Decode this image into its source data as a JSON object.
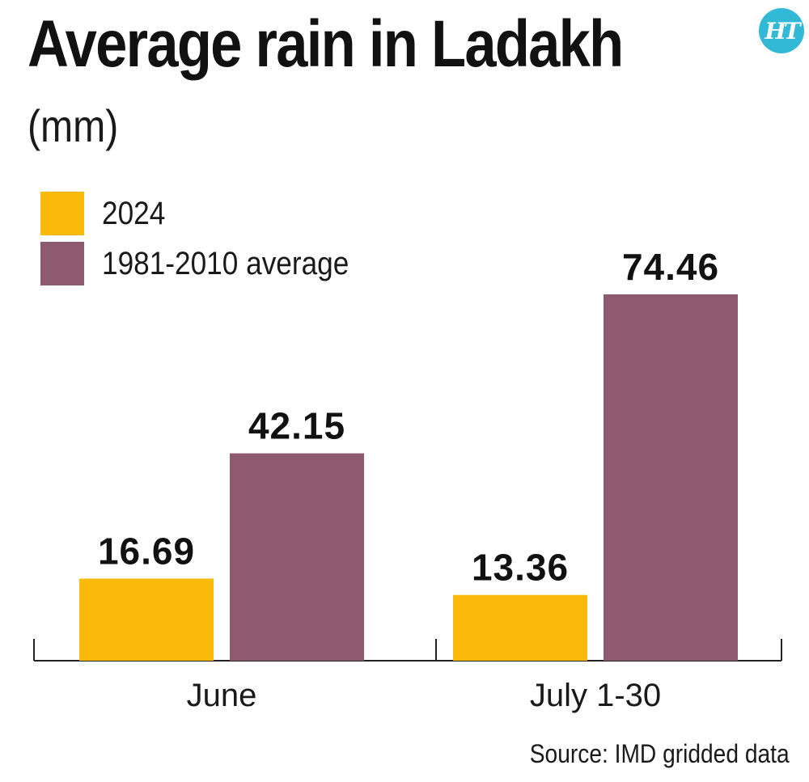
{
  "header": {
    "title": "Average rain in Ladakh",
    "subtitle": "(mm)",
    "logo_text": "HT"
  },
  "legend": [
    {
      "label": "2024",
      "color": "#fbb90c"
    },
    {
      "label": "1981-2010 average",
      "color": "#8e5a6f"
    }
  ],
  "chart_data": {
    "type": "bar",
    "title": "Average rain in Ladakh",
    "subtitle": "(mm)",
    "categories": [
      "June",
      "July 1-30"
    ],
    "series": [
      {
        "name": "2024",
        "color": "#fbb90c",
        "values": [
          16.69,
          13.36
        ]
      },
      {
        "name": "1981-2010 average",
        "color": "#8e5a6f",
        "values": [
          42.15,
          74.46
        ]
      }
    ],
    "value_labels": [
      [
        "16.69",
        "13.36"
      ],
      [
        "42.15",
        "74.46"
      ]
    ],
    "xlabel": "",
    "ylabel": "",
    "ylim": [
      0,
      80
    ],
    "grid": false,
    "legend_position": "top-left"
  },
  "source": "Source: IMD gridded data"
}
